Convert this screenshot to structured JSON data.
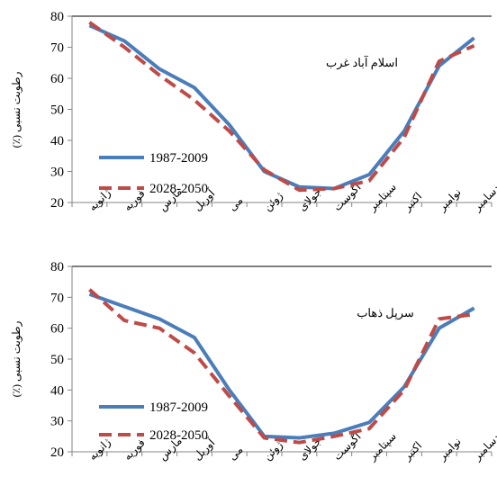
{
  "colors": {
    "series1": "#4a7ebb",
    "series2": "#be4b48",
    "axis": "#868686"
  },
  "chart_data": [
    {
      "type": "line",
      "annotation": "اسلام آباد غرب",
      "ylabel": "رطوبت نسبی (٪)",
      "ylim": [
        20,
        80
      ],
      "yticks": [
        20,
        30,
        40,
        50,
        60,
        70,
        80
      ],
      "categories": [
        "ژانویه",
        "فوریه",
        "مارس",
        "آوریل",
        "می",
        "ژوئن",
        "جولای",
        "آگوست",
        "سپتامبر",
        "اکتبر",
        "نوامبر",
        "دسامبر"
      ],
      "legend_position": "bottom-left",
      "series": [
        {
          "name": "1987-2009",
          "style": "solid",
          "values": [
            77,
            72,
            63,
            57,
            45,
            30,
            25,
            24.5,
            29,
            43,
            64,
            73
          ]
        },
        {
          "name": "2028-2050",
          "style": "dashed",
          "values": [
            78,
            70,
            61,
            53,
            43,
            30.5,
            24,
            24.5,
            27,
            41,
            65.5,
            70.5
          ]
        }
      ]
    },
    {
      "type": "line",
      "annotation": "سرپل ذهاب",
      "ylabel": "رطوبت نسبی (٪)",
      "ylim": [
        20,
        80
      ],
      "yticks": [
        20,
        30,
        40,
        50,
        60,
        70,
        80
      ],
      "categories": [
        "ژانویه",
        "فوریه",
        "مارس",
        "آوریل",
        "می",
        "ژوئن",
        "جولای",
        "آگوست",
        "سپتامبر",
        "اکتبر",
        "نوامبر",
        "دسامبر"
      ],
      "legend_position": "bottom-left",
      "series": [
        {
          "name": "1987-2009",
          "style": "solid",
          "values": [
            71,
            67,
            63,
            57,
            40,
            25,
            24.5,
            26,
            29.5,
            41,
            60,
            66.5
          ]
        },
        {
          "name": "2028-2050",
          "style": "dashed",
          "values": [
            72.5,
            62.5,
            60,
            52,
            38,
            24.5,
            23,
            25,
            27.5,
            40,
            63,
            64.5
          ]
        }
      ]
    }
  ]
}
